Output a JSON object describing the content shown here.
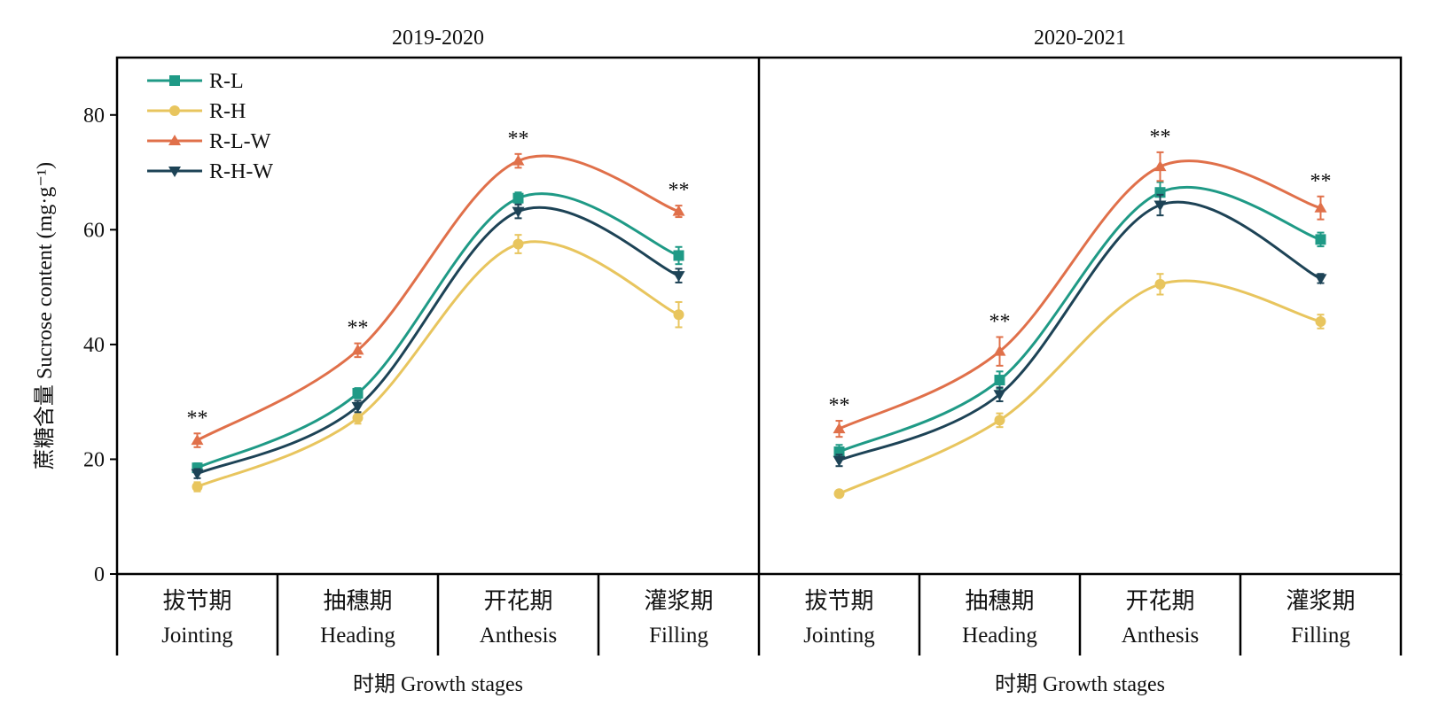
{
  "chart_data": {
    "type": "line",
    "ylabel": "蔗糖含量 Sucrose content (mg·g⁻¹)",
    "ylim": [
      0,
      90
    ],
    "yticks": [
      0,
      20,
      40,
      60,
      80
    ],
    "grid": false,
    "legend_position": "top-left",
    "categories": [
      {
        "zh": "拔节期",
        "en": "Jointing"
      },
      {
        "zh": "抽穗期",
        "en": "Heading"
      },
      {
        "zh": "开花期",
        "en": "Anthesis"
      },
      {
        "zh": "灌浆期",
        "en": "Filling"
      }
    ],
    "xlabel": "时期 Growth stages",
    "series_style": [
      {
        "name": "R-L",
        "color": "#1f9a86",
        "marker": "square"
      },
      {
        "name": "R-H",
        "color": "#e8c55e",
        "marker": "circle"
      },
      {
        "name": "R-L-W",
        "color": "#e0704a",
        "marker": "triangle-up"
      },
      {
        "name": "R-H-W",
        "color": "#1d4356",
        "marker": "triangle-down"
      }
    ],
    "significance_label": "**",
    "panels": [
      {
        "title": "2019-2020",
        "series": [
          {
            "name": "R-L",
            "values": [
              18.5,
              31.5,
              65.5,
              55.5
            ],
            "errors": [
              0.8,
              0.9,
              1.0,
              1.5
            ]
          },
          {
            "name": "R-H",
            "values": [
              15.2,
              27.2,
              57.5,
              45.2
            ],
            "errors": [
              0.8,
              1.0,
              1.6,
              2.2
            ]
          },
          {
            "name": "R-L-W",
            "values": [
              23.3,
              39.0,
              72.0,
              63.2
            ],
            "errors": [
              1.2,
              1.2,
              1.2,
              1.0
            ]
          },
          {
            "name": "R-H-W",
            "values": [
              17.5,
              29.2,
              63.2,
              52.0
            ],
            "errors": [
              0.8,
              1.0,
              1.2,
              1.2
            ]
          }
        ],
        "significance": [
          "**",
          "**",
          "**",
          "**"
        ]
      },
      {
        "title": "2020-2021",
        "series": [
          {
            "name": "R-L",
            "values": [
              21.3,
              33.8,
              66.5,
              58.3
            ],
            "errors": [
              1.2,
              1.5,
              1.8,
              1.2
            ]
          },
          {
            "name": "R-H",
            "values": [
              14.0,
              26.8,
              50.5,
              44.0
            ],
            "errors": [
              0.5,
              1.2,
              1.8,
              1.2
            ]
          },
          {
            "name": "R-L-W",
            "values": [
              25.3,
              38.8,
              71.0,
              63.8
            ],
            "errors": [
              1.4,
              2.5,
              2.5,
              2.0
            ]
          },
          {
            "name": "R-H-W",
            "values": [
              19.8,
              31.3,
              64.3,
              51.5
            ],
            "errors": [
              1.0,
              1.2,
              1.8,
              0.8
            ]
          }
        ],
        "significance": [
          "**",
          "**",
          "**",
          "**"
        ]
      }
    ]
  }
}
